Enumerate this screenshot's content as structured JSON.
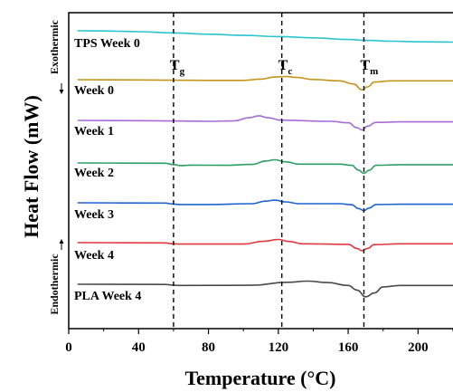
{
  "chart_data": {
    "type": "line",
    "xlabel": "Temperature (°C)",
    "ylabel": "Heat Flow (mW)",
    "xlim": [
      0,
      220
    ],
    "x_ticks": [
      0,
      40,
      80,
      120,
      160,
      200
    ],
    "exo_label": "Exothermic",
    "endo_label": "Endothermic",
    "grid": false,
    "reference_lines": [
      {
        "label_main": "T",
        "label_sub": "g",
        "x": 60
      },
      {
        "label_main": "T",
        "label_sub": "c",
        "x": 122
      },
      {
        "label_main": "T",
        "label_sub": "m",
        "x": 169
      }
    ],
    "series": [
      {
        "name": "TPS Week 0",
        "color": "#2bc3cf",
        "points": [
          [
            5,
            2.5
          ],
          [
            20,
            2.45
          ],
          [
            40,
            2.2
          ],
          [
            60,
            1.75
          ],
          [
            80,
            1.3
          ],
          [
            100,
            0.9
          ],
          [
            120,
            0.5
          ],
          [
            140,
            0.05
          ],
          [
            160,
            -0.5
          ],
          [
            170,
            -0.8
          ],
          [
            185,
            -1.1
          ],
          [
            200,
            -1.3
          ],
          [
            220,
            -1.4
          ]
        ]
      },
      {
        "name": "Week 0",
        "color": "#c4951c",
        "points": [
          [
            5,
            0
          ],
          [
            40,
            -0.1
          ],
          [
            60,
            -0.2
          ],
          [
            80,
            -0.25
          ],
          [
            100,
            -0.25
          ],
          [
            110,
            0.2
          ],
          [
            118,
            0.9
          ],
          [
            124,
            1.1
          ],
          [
            130,
            0.8
          ],
          [
            140,
            0.05
          ],
          [
            155,
            -0.4
          ],
          [
            163,
            -1.5
          ],
          [
            168,
            -3.5
          ],
          [
            171,
            -2.5
          ],
          [
            175,
            -0.8
          ],
          [
            185,
            -0.4
          ],
          [
            220,
            -0.4
          ]
        ]
      },
      {
        "name": "Week 1",
        "color": "#a86bd6",
        "points": [
          [
            5,
            0
          ],
          [
            40,
            -0.1
          ],
          [
            60,
            -0.2
          ],
          [
            80,
            -0.3
          ],
          [
            95,
            -0.15
          ],
          [
            103,
            0.9
          ],
          [
            109,
            1.6
          ],
          [
            114,
            0.9
          ],
          [
            122,
            0.05
          ],
          [
            150,
            -0.3
          ],
          [
            160,
            -0.8
          ],
          [
            165,
            -2.5
          ],
          [
            168,
            -3.3
          ],
          [
            171,
            -2
          ],
          [
            176,
            -0.7
          ],
          [
            190,
            -0.5
          ],
          [
            220,
            -0.5
          ]
        ]
      },
      {
        "name": "Week 2",
        "color": "#2f9e66",
        "points": [
          [
            5,
            0
          ],
          [
            55,
            -0.1
          ],
          [
            60,
            -0.55
          ],
          [
            64,
            -0.9
          ],
          [
            70,
            -0.75
          ],
          [
            90,
            -0.8
          ],
          [
            105,
            -0.5
          ],
          [
            113,
            0.7
          ],
          [
            118,
            1.1
          ],
          [
            124,
            0.4
          ],
          [
            132,
            -0.4
          ],
          [
            155,
            -0.4
          ],
          [
            162,
            -0.8
          ],
          [
            166,
            -2.5
          ],
          [
            169,
            -3.6
          ],
          [
            172,
            -2.5
          ],
          [
            176,
            -0.8
          ],
          [
            190,
            -0.6
          ],
          [
            220,
            -0.6
          ]
        ]
      },
      {
        "name": "Week 3",
        "color": "#1e64d0",
        "points": [
          [
            5,
            0
          ],
          [
            55,
            -0.1
          ],
          [
            60,
            -0.45
          ],
          [
            64,
            -0.6
          ],
          [
            80,
            -0.6
          ],
          [
            105,
            -0.3
          ],
          [
            113,
            0.6
          ],
          [
            118,
            0.9
          ],
          [
            124,
            0.3
          ],
          [
            132,
            -0.3
          ],
          [
            155,
            -0.3
          ],
          [
            162,
            -0.7
          ],
          [
            166,
            -2
          ],
          [
            169,
            -2.7
          ],
          [
            172,
            -1.8
          ],
          [
            176,
            -0.6
          ],
          [
            190,
            -0.5
          ],
          [
            220,
            -0.5
          ]
        ]
      },
      {
        "name": "Week 4",
        "color": "#e0383f",
        "points": [
          [
            5,
            0
          ],
          [
            55,
            -0.1
          ],
          [
            60,
            -0.4
          ],
          [
            64,
            -0.5
          ],
          [
            100,
            -0.5
          ],
          [
            112,
            0.5
          ],
          [
            120,
            1.1
          ],
          [
            126,
            0.4
          ],
          [
            134,
            -0.4
          ],
          [
            160,
            -0.6
          ],
          [
            165,
            -2
          ],
          [
            168,
            -2.8
          ],
          [
            171,
            -2
          ],
          [
            175,
            -0.7
          ],
          [
            190,
            -0.4
          ],
          [
            220,
            -0.4
          ]
        ]
      },
      {
        "name": "PLA Week 4",
        "color": "#4a4a4a",
        "points": [
          [
            5,
            0
          ],
          [
            55,
            -0.05
          ],
          [
            60,
            -0.3
          ],
          [
            64,
            -0.4
          ],
          [
            105,
            -0.35
          ],
          [
            125,
            0.7
          ],
          [
            137,
            1.1
          ],
          [
            148,
            0.6
          ],
          [
            160,
            -0.4
          ],
          [
            165,
            -2
          ],
          [
            170,
            -4.3
          ],
          [
            175,
            -3
          ],
          [
            180,
            -0.9
          ],
          [
            190,
            -0.4
          ],
          [
            220,
            -0.4
          ]
        ]
      }
    ]
  }
}
